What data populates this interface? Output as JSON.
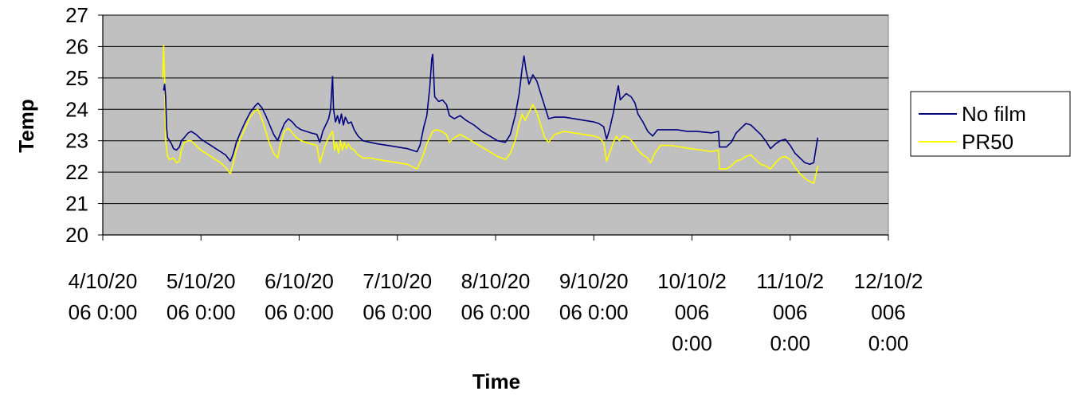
{
  "chart_data": {
    "type": "line",
    "xlabel": "Time",
    "ylabel": "Temp",
    "ylim": [
      20,
      27
    ],
    "yticks": [
      20,
      21,
      22,
      23,
      24,
      25,
      26,
      27
    ],
    "xlim": [
      0,
      8
    ],
    "xtick_labels": [
      [
        "4/10/20",
        "06 0:00"
      ],
      [
        "5/10/20",
        "06 0:00"
      ],
      [
        "6/10/20",
        "06 0:00"
      ],
      [
        "7/10/20",
        "06 0:00"
      ],
      [
        "8/10/20",
        "06 0:00"
      ],
      [
        "9/10/20",
        "06 0:00"
      ],
      [
        "10/10/2",
        "006",
        "0:00"
      ],
      [
        "11/10/2",
        "006",
        "0:00"
      ],
      [
        "12/10/2",
        "006",
        "0:00"
      ]
    ],
    "grid": "horizontal",
    "plot_background": "#c0c0c0",
    "legend_position": "right",
    "series": [
      {
        "name": "No film",
        "color": "#000080",
        "points": [
          [
            0.62,
            24.6
          ],
          [
            0.63,
            24.8
          ],
          [
            0.64,
            24.4
          ],
          [
            0.65,
            23.4
          ],
          [
            0.66,
            23.1
          ],
          [
            0.68,
            23.0
          ],
          [
            0.7,
            22.9
          ],
          [
            0.72,
            22.75
          ],
          [
            0.75,
            22.7
          ],
          [
            0.78,
            22.8
          ],
          [
            0.8,
            23.0
          ],
          [
            0.83,
            23.1
          ],
          [
            0.87,
            23.25
          ],
          [
            0.9,
            23.3
          ],
          [
            0.95,
            23.2
          ],
          [
            1.0,
            23.05
          ],
          [
            1.05,
            22.95
          ],
          [
            1.1,
            22.85
          ],
          [
            1.15,
            22.75
          ],
          [
            1.2,
            22.65
          ],
          [
            1.25,
            22.55
          ],
          [
            1.3,
            22.35
          ],
          [
            1.33,
            22.6
          ],
          [
            1.36,
            22.95
          ],
          [
            1.4,
            23.25
          ],
          [
            1.45,
            23.6
          ],
          [
            1.5,
            23.9
          ],
          [
            1.55,
            24.1
          ],
          [
            1.58,
            24.2
          ],
          [
            1.62,
            24.05
          ],
          [
            1.66,
            23.8
          ],
          [
            1.7,
            23.5
          ],
          [
            1.74,
            23.2
          ],
          [
            1.78,
            23.0
          ],
          [
            1.81,
            23.25
          ],
          [
            1.85,
            23.55
          ],
          [
            1.89,
            23.7
          ],
          [
            1.93,
            23.6
          ],
          [
            1.97,
            23.45
          ],
          [
            2.02,
            23.35
          ],
          [
            2.07,
            23.3
          ],
          [
            2.12,
            23.25
          ],
          [
            2.18,
            23.2
          ],
          [
            2.21,
            22.95
          ],
          [
            2.24,
            23.3
          ],
          [
            2.27,
            23.5
          ],
          [
            2.3,
            23.7
          ],
          [
            2.32,
            24.0
          ],
          [
            2.34,
            25.05
          ],
          [
            2.35,
            24.0
          ],
          [
            2.37,
            23.6
          ],
          [
            2.39,
            23.8
          ],
          [
            2.41,
            23.55
          ],
          [
            2.43,
            23.85
          ],
          [
            2.45,
            23.5
          ],
          [
            2.47,
            23.75
          ],
          [
            2.5,
            23.55
          ],
          [
            2.53,
            23.6
          ],
          [
            2.56,
            23.35
          ],
          [
            2.6,
            23.15
          ],
          [
            2.65,
            23.0
          ],
          [
            2.72,
            22.95
          ],
          [
            2.8,
            22.9
          ],
          [
            2.9,
            22.85
          ],
          [
            3.0,
            22.8
          ],
          [
            3.1,
            22.75
          ],
          [
            3.2,
            22.65
          ],
          [
            3.23,
            22.85
          ],
          [
            3.27,
            23.45
          ],
          [
            3.3,
            23.8
          ],
          [
            3.33,
            24.7
          ],
          [
            3.35,
            25.6
          ],
          [
            3.36,
            25.75
          ],
          [
            3.38,
            24.4
          ],
          [
            3.42,
            24.25
          ],
          [
            3.46,
            24.3
          ],
          [
            3.5,
            24.15
          ],
          [
            3.53,
            23.8
          ],
          [
            3.58,
            23.7
          ],
          [
            3.64,
            23.8
          ],
          [
            3.7,
            23.65
          ],
          [
            3.78,
            23.5
          ],
          [
            3.86,
            23.3
          ],
          [
            3.94,
            23.15
          ],
          [
            4.02,
            23.0
          ],
          [
            4.1,
            22.95
          ],
          [
            4.15,
            23.2
          ],
          [
            4.2,
            23.8
          ],
          [
            4.24,
            24.5
          ],
          [
            4.27,
            25.3
          ],
          [
            4.29,
            25.7
          ],
          [
            4.31,
            25.25
          ],
          [
            4.34,
            24.8
          ],
          [
            4.38,
            25.1
          ],
          [
            4.42,
            24.9
          ],
          [
            4.46,
            24.5
          ],
          [
            4.5,
            24.1
          ],
          [
            4.54,
            23.7
          ],
          [
            4.6,
            23.75
          ],
          [
            4.7,
            23.75
          ],
          [
            4.8,
            23.7
          ],
          [
            4.9,
            23.65
          ],
          [
            5.0,
            23.6
          ],
          [
            5.05,
            23.55
          ],
          [
            5.1,
            23.45
          ],
          [
            5.13,
            23.05
          ],
          [
            5.16,
            23.35
          ],
          [
            5.2,
            23.9
          ],
          [
            5.23,
            24.45
          ],
          [
            5.25,
            24.75
          ],
          [
            5.27,
            24.3
          ],
          [
            5.3,
            24.4
          ],
          [
            5.33,
            24.5
          ],
          [
            5.38,
            24.4
          ],
          [
            5.42,
            24.2
          ],
          [
            5.45,
            23.85
          ],
          [
            5.5,
            23.6
          ],
          [
            5.55,
            23.3
          ],
          [
            5.6,
            23.15
          ],
          [
            5.65,
            23.35
          ],
          [
            5.75,
            23.35
          ],
          [
            5.85,
            23.35
          ],
          [
            5.95,
            23.3
          ],
          [
            6.05,
            23.3
          ],
          [
            6.2,
            23.25
          ],
          [
            6.27,
            23.3
          ],
          [
            6.28,
            22.8
          ],
          [
            6.35,
            22.8
          ],
          [
            6.4,
            22.95
          ],
          [
            6.45,
            23.25
          ],
          [
            6.5,
            23.4
          ],
          [
            6.55,
            23.55
          ],
          [
            6.6,
            23.5
          ],
          [
            6.65,
            23.35
          ],
          [
            6.7,
            23.2
          ],
          [
            6.75,
            23.0
          ],
          [
            6.8,
            22.75
          ],
          [
            6.85,
            22.9
          ],
          [
            6.9,
            23.0
          ],
          [
            6.95,
            23.05
          ],
          [
            7.0,
            22.85
          ],
          [
            7.05,
            22.6
          ],
          [
            7.1,
            22.45
          ],
          [
            7.15,
            22.3
          ],
          [
            7.2,
            22.25
          ],
          [
            7.24,
            22.3
          ],
          [
            7.26,
            22.7
          ],
          [
            7.28,
            23.1
          ]
        ]
      },
      {
        "name": "PR50",
        "color": "#ffff00",
        "points": [
          [
            0.61,
            25.0
          ],
          [
            0.62,
            26.05
          ],
          [
            0.63,
            25.0
          ],
          [
            0.64,
            23.0
          ],
          [
            0.66,
            22.5
          ],
          [
            0.68,
            22.4
          ],
          [
            0.72,
            22.45
          ],
          [
            0.75,
            22.3
          ],
          [
            0.78,
            22.35
          ],
          [
            0.8,
            22.7
          ],
          [
            0.83,
            22.95
          ],
          [
            0.87,
            23.0
          ],
          [
            0.9,
            23.0
          ],
          [
            0.95,
            22.85
          ],
          [
            1.0,
            22.7
          ],
          [
            1.05,
            22.6
          ],
          [
            1.1,
            22.5
          ],
          [
            1.15,
            22.4
          ],
          [
            1.2,
            22.3
          ],
          [
            1.25,
            22.15
          ],
          [
            1.3,
            21.95
          ],
          [
            1.33,
            22.3
          ],
          [
            1.36,
            22.7
          ],
          [
            1.4,
            23.05
          ],
          [
            1.45,
            23.4
          ],
          [
            1.5,
            23.75
          ],
          [
            1.55,
            23.95
          ],
          [
            1.58,
            24.0
          ],
          [
            1.62,
            23.7
          ],
          [
            1.66,
            23.3
          ],
          [
            1.7,
            22.9
          ],
          [
            1.74,
            22.6
          ],
          [
            1.78,
            22.45
          ],
          [
            1.81,
            22.9
          ],
          [
            1.85,
            23.3
          ],
          [
            1.89,
            23.4
          ],
          [
            1.93,
            23.25
          ],
          [
            1.97,
            23.1
          ],
          [
            2.02,
            23.0
          ],
          [
            2.07,
            22.95
          ],
          [
            2.12,
            22.9
          ],
          [
            2.18,
            22.85
          ],
          [
            2.21,
            22.3
          ],
          [
            2.24,
            22.6
          ],
          [
            2.27,
            22.9
          ],
          [
            2.3,
            23.1
          ],
          [
            2.32,
            23.2
          ],
          [
            2.34,
            23.3
          ],
          [
            2.36,
            22.7
          ],
          [
            2.38,
            22.95
          ],
          [
            2.4,
            22.6
          ],
          [
            2.42,
            23.0
          ],
          [
            2.44,
            22.7
          ],
          [
            2.46,
            22.95
          ],
          [
            2.48,
            22.75
          ],
          [
            2.5,
            22.9
          ],
          [
            2.53,
            22.75
          ],
          [
            2.56,
            22.7
          ],
          [
            2.6,
            22.55
          ],
          [
            2.65,
            22.45
          ],
          [
            2.72,
            22.45
          ],
          [
            2.8,
            22.4
          ],
          [
            2.9,
            22.35
          ],
          [
            3.0,
            22.3
          ],
          [
            3.1,
            22.25
          ],
          [
            3.2,
            22.1
          ],
          [
            3.23,
            22.3
          ],
          [
            3.27,
            22.6
          ],
          [
            3.3,
            22.9
          ],
          [
            3.33,
            23.1
          ],
          [
            3.36,
            23.3
          ],
          [
            3.4,
            23.35
          ],
          [
            3.45,
            23.3
          ],
          [
            3.5,
            23.2
          ],
          [
            3.53,
            22.95
          ],
          [
            3.58,
            23.1
          ],
          [
            3.64,
            23.2
          ],
          [
            3.7,
            23.1
          ],
          [
            3.78,
            22.95
          ],
          [
            3.86,
            22.8
          ],
          [
            3.94,
            22.65
          ],
          [
            4.02,
            22.5
          ],
          [
            4.1,
            22.4
          ],
          [
            4.15,
            22.6
          ],
          [
            4.2,
            23.0
          ],
          [
            4.24,
            23.55
          ],
          [
            4.27,
            23.85
          ],
          [
            4.3,
            23.65
          ],
          [
            4.34,
            23.9
          ],
          [
            4.38,
            24.15
          ],
          [
            4.42,
            23.9
          ],
          [
            4.46,
            23.5
          ],
          [
            4.5,
            23.1
          ],
          [
            4.54,
            22.95
          ],
          [
            4.6,
            23.2
          ],
          [
            4.7,
            23.3
          ],
          [
            4.8,
            23.25
          ],
          [
            4.9,
            23.2
          ],
          [
            5.0,
            23.15
          ],
          [
            5.05,
            23.1
          ],
          [
            5.1,
            22.95
          ],
          [
            5.13,
            22.35
          ],
          [
            5.16,
            22.6
          ],
          [
            5.2,
            22.95
          ],
          [
            5.23,
            23.15
          ],
          [
            5.26,
            23.0
          ],
          [
            5.3,
            23.15
          ],
          [
            5.35,
            23.1
          ],
          [
            5.4,
            22.95
          ],
          [
            5.45,
            22.7
          ],
          [
            5.5,
            22.55
          ],
          [
            5.55,
            22.45
          ],
          [
            5.58,
            22.3
          ],
          [
            5.62,
            22.6
          ],
          [
            5.68,
            22.85
          ],
          [
            5.78,
            22.85
          ],
          [
            5.88,
            22.8
          ],
          [
            5.98,
            22.75
          ],
          [
            6.1,
            22.7
          ],
          [
            6.2,
            22.65
          ],
          [
            6.27,
            22.7
          ],
          [
            6.28,
            22.1
          ],
          [
            6.35,
            22.1
          ],
          [
            6.4,
            22.2
          ],
          [
            6.45,
            22.35
          ],
          [
            6.5,
            22.4
          ],
          [
            6.55,
            22.5
          ],
          [
            6.6,
            22.55
          ],
          [
            6.65,
            22.4
          ],
          [
            6.7,
            22.25
          ],
          [
            6.75,
            22.2
          ],
          [
            6.8,
            22.1
          ],
          [
            6.85,
            22.3
          ],
          [
            6.9,
            22.45
          ],
          [
            6.95,
            22.5
          ],
          [
            7.0,
            22.4
          ],
          [
            7.05,
            22.15
          ],
          [
            7.1,
            21.95
          ],
          [
            7.15,
            21.8
          ],
          [
            7.2,
            21.7
          ],
          [
            7.24,
            21.65
          ],
          [
            7.26,
            21.9
          ],
          [
            7.28,
            22.2
          ]
        ]
      }
    ]
  }
}
